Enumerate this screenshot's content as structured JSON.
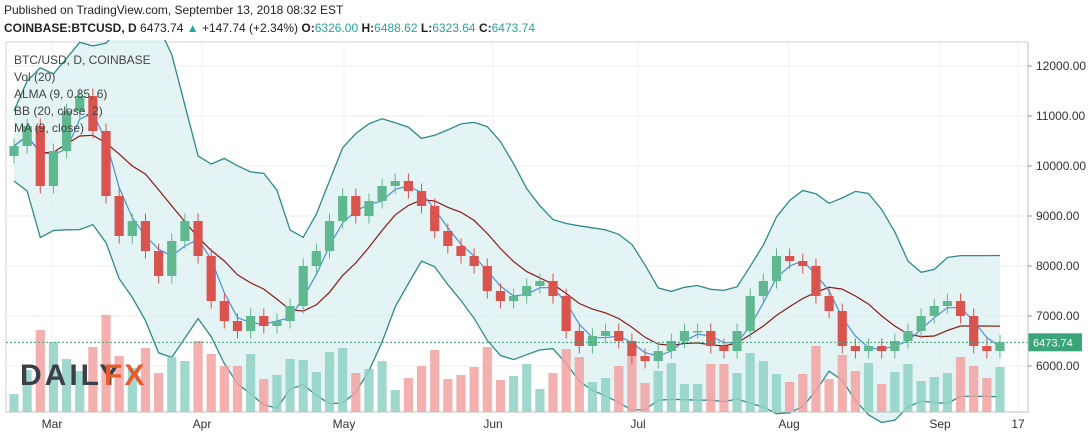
{
  "header": {
    "published": "Published on TradingView.com, September 13, 2018 08:32 EST",
    "symbol": "COINBASE:BTCUSD, D",
    "last": "6473.74",
    "change": "+147.74 (+2.34%)",
    "o_label": "O:",
    "o_val": "6326.00",
    "h_label": "H:",
    "h_val": "6488.62",
    "l_label": "L:",
    "l_val": "6323.64",
    "c_label": "C:",
    "c_val": "6473.74",
    "up_arrow": "▲"
  },
  "legend": [
    "BTC/USD, D, COINBASE",
    "Vol (20)",
    "ALMA (9, 0.85, 6)",
    "BB (20, close, 2)",
    "MA (9, close)"
  ],
  "watermark": {
    "left": "DAILY",
    "right": "FX"
  },
  "price_badge": "6473.74",
  "colors": {
    "up": "#5fb88f",
    "down": "#d9534f",
    "bb": "#2e8b8b",
    "bb_fill": "#d8eeee",
    "ma": "#8b1a1a",
    "alma": "#4a90d9",
    "badge": "#3aa57a"
  },
  "chart_data": {
    "type": "candlestick",
    "title": "BTC/USD, D, COINBASE",
    "y_ticks": [
      "12000.00",
      "11000.00",
      "10000.00",
      "9000.00",
      "8000.00",
      "7000.00",
      "6000.00"
    ],
    "ylim": [
      5000,
      12500
    ],
    "x_ticks": [
      "Mar",
      "Apr",
      "May",
      "Jun",
      "Jul",
      "Aug",
      "Sep",
      "17"
    ],
    "close_series_approx": [
      10400,
      10800,
      9600,
      10300,
      11100,
      11400,
      10700,
      9400,
      8600,
      8900,
      8300,
      7800,
      8500,
      8900,
      8200,
      7300,
      6900,
      6700,
      7000,
      6800,
      6900,
      7200,
      8000,
      8300,
      8900,
      9400,
      9000,
      9300,
      9600,
      9700,
      9500,
      9200,
      8700,
      8400,
      8200,
      8000,
      7500,
      7300,
      7400,
      7600,
      7700,
      7400,
      6700,
      6400,
      6600,
      6700,
      6500,
      6200,
      6100,
      6300,
      6500,
      6700,
      6700,
      6400,
      6300,
      6700,
      7400,
      7700,
      8200,
      8100,
      8000,
      7400,
      7100,
      6400,
      6300,
      6400,
      6300,
      6500,
      6700,
      7000,
      7200,
      7300,
      7000,
      6400,
      6300,
      6473.74
    ],
    "last_price": 6473.74
  }
}
